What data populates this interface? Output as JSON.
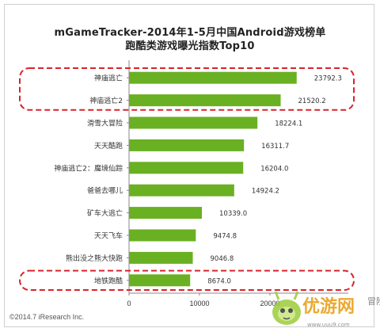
{
  "chart_data": {
    "type": "bar",
    "orientation": "horizontal",
    "title": "mGameTracker-2014年1-5月中国Android游戏榜单",
    "subtitle": "跑酷类游戏曝光指数Top10",
    "categories": [
      "神庙逃亡",
      "神庙逃亡2",
      "滑雪大冒险",
      "天天酷跑",
      "神庙逃亡2：魔境仙踪",
      "爸爸去哪儿",
      "矿车大逃亡",
      "天天飞车",
      "熊出没之熊大快跑",
      "地铁跑酷"
    ],
    "values": [
      23792.3,
      21520.2,
      18224.1,
      16311.7,
      16204.0,
      14924.2,
      10339.0,
      9474.8,
      9046.8,
      8674.0
    ],
    "value_labels": [
      "23792.3",
      "21520.2",
      "18224.1",
      "16311.7",
      "16204.0",
      "14924.2",
      "10339.0",
      "9474.8",
      "9046.8",
      "8674.0"
    ],
    "xlim": [
      0,
      35000
    ],
    "x_ticks": [
      "0",
      "10000",
      "20000"
    ],
    "bar_color": "#6ab023",
    "highlight_color": "#d9232a",
    "highlighted_groups": [
      [
        0,
        1
      ],
      [
        9
      ]
    ],
    "grid": false,
    "legend": "none"
  },
  "footer": "©2014.7 iResearch Inc.",
  "watermark": {
    "text": "优游网",
    "side_text": "冒险",
    "url_fragment": "www.uuu9.com",
    "text_color": "#e8a11a"
  }
}
